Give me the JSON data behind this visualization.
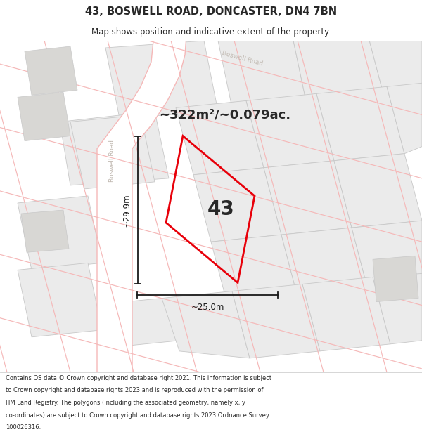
{
  "title": "43, BOSWELL ROAD, DONCASTER, DN4 7BN",
  "subtitle": "Map shows position and indicative extent of the property.",
  "area_text": "~322m²/~0.079ac.",
  "dim_v": "~29.9m",
  "dim_h": "~25.0m",
  "prop_num": "43",
  "footer_text": "Contains OS data © Crown copyright and database right 2021. This information is subject to Crown copyright and database rights 2023 and is reproduced with the permission of HM Land Registry. The polygons (including the associated geometry, namely x, y co-ordinates) are subject to Crown copyright and database rights 2023 Ordnance Survey 100026316.",
  "bg_map": "#f7f6f4",
  "parcel_fill": "#ebebeb",
  "parcel_edge": "#c8c8c8",
  "pink": "#f5b8b8",
  "road_fill": "#ffffff",
  "plot_red": "#e8000a",
  "label_grey": "#c0b8b0",
  "dim_black": "#1a1a1a",
  "text_dark": "#282828"
}
